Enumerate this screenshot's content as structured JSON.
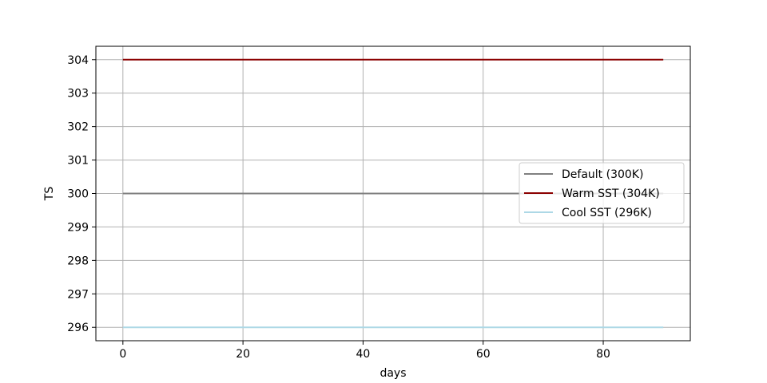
{
  "chart_data": {
    "type": "line",
    "xlabel": "days",
    "ylabel": "TS",
    "xlim": [
      -4.5,
      94.5
    ],
    "ylim": [
      295.6,
      304.4
    ],
    "xticks": [
      0,
      20,
      40,
      60,
      80
    ],
    "yticks": [
      296,
      297,
      298,
      299,
      300,
      301,
      302,
      303,
      304
    ],
    "grid": true,
    "legend_position": "center-right",
    "series": [
      {
        "name": "Default (300K)",
        "color": "#808080",
        "x": [
          0,
          90
        ],
        "y": [
          300,
          300
        ]
      },
      {
        "name": "Warm SST (304K)",
        "color": "#8b0000",
        "x": [
          0,
          90
        ],
        "y": [
          304,
          304
        ]
      },
      {
        "name": "Cool SST (296K)",
        "color": "#add8e6",
        "x": [
          0,
          90
        ],
        "y": [
          296,
          296
        ]
      }
    ]
  }
}
